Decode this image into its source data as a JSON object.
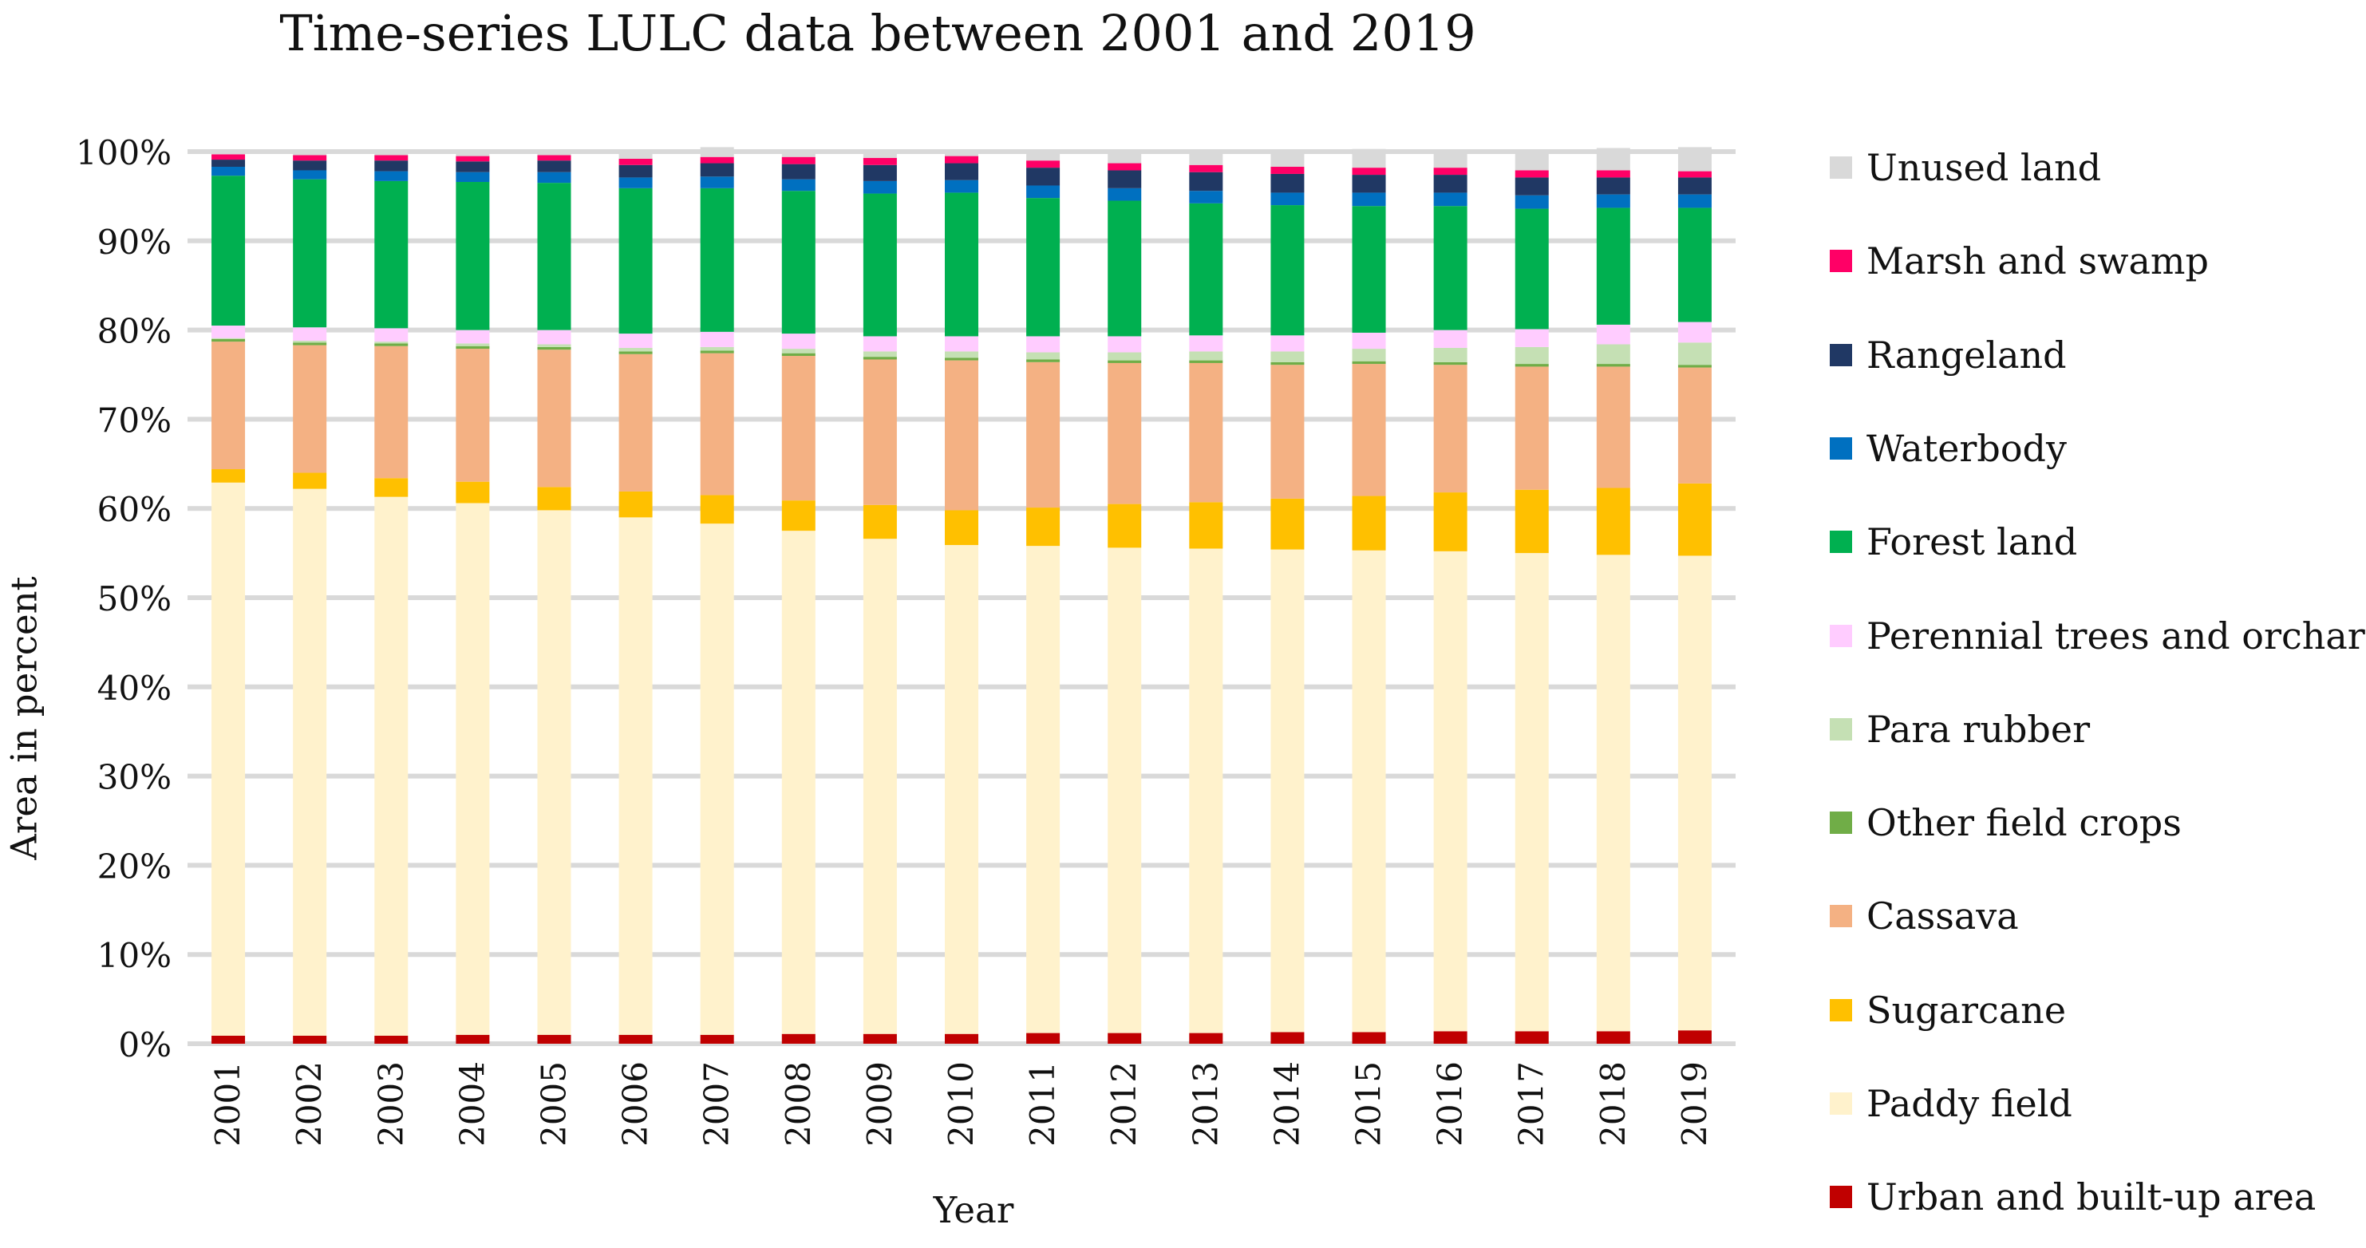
{
  "chart_data": {
    "type": "bar",
    "stacked": "percent",
    "title": "Time-series LULC data between 2001 and 2019",
    "xlabel": "Year",
    "ylabel": "Area in percent",
    "ylim": [
      0,
      100
    ],
    "yticks": [
      "0%",
      "10%",
      "20%",
      "30%",
      "40%",
      "50%",
      "60%",
      "70%",
      "80%",
      "90%",
      "100%"
    ],
    "grid": true,
    "legend_position": "right",
    "categories": [
      "2001",
      "2002",
      "2003",
      "2004",
      "2005",
      "2006",
      "2007",
      "2008",
      "2009",
      "2010",
      "2011",
      "2012",
      "2013",
      "2014",
      "2015",
      "2016",
      "2017",
      "2018",
      "2019"
    ],
    "series": [
      {
        "name": "Urban and built-up area",
        "color": "#C00000",
        "values": [
          0.9,
          0.9,
          0.9,
          1.0,
          1.0,
          1.0,
          1.0,
          1.1,
          1.1,
          1.1,
          1.2,
          1.2,
          1.2,
          1.3,
          1.3,
          1.4,
          1.4,
          1.4,
          1.5
        ]
      },
      {
        "name": "Paddy field",
        "color": "#FFF2CC",
        "values": [
          62.0,
          61.3,
          60.4,
          59.6,
          58.8,
          58.0,
          57.3,
          56.4,
          55.5,
          54.8,
          54.6,
          54.4,
          54.3,
          54.1,
          54.0,
          53.8,
          53.6,
          53.4,
          53.2
        ]
      },
      {
        "name": "Sugarcane",
        "color": "#FFC000",
        "values": [
          1.5,
          1.8,
          2.1,
          2.4,
          2.6,
          2.9,
          3.2,
          3.4,
          3.8,
          3.9,
          4.3,
          4.9,
          5.2,
          5.7,
          6.1,
          6.6,
          7.1,
          7.5,
          8.1
        ]
      },
      {
        "name": "Cassava",
        "color": "#F4B183",
        "values": [
          14.3,
          14.3,
          14.8,
          14.9,
          15.4,
          15.4,
          15.9,
          16.2,
          16.3,
          16.8,
          16.3,
          15.8,
          15.6,
          15.0,
          14.8,
          14.3,
          13.8,
          13.6,
          13.0
        ]
      },
      {
        "name": "Other field crops",
        "color": "#70AD47",
        "values": [
          0.3,
          0.3,
          0.3,
          0.3,
          0.3,
          0.3,
          0.3,
          0.3,
          0.3,
          0.3,
          0.3,
          0.3,
          0.3,
          0.3,
          0.3,
          0.3,
          0.3,
          0.3,
          0.3
        ]
      },
      {
        "name": "Para rubber",
        "color": "#C5E0B4",
        "values": [
          0.1,
          0.2,
          0.2,
          0.3,
          0.3,
          0.4,
          0.4,
          0.5,
          0.6,
          0.7,
          0.8,
          0.9,
          1.0,
          1.2,
          1.4,
          1.6,
          1.9,
          2.2,
          2.5
        ]
      },
      {
        "name": "Perennial trees and orchard",
        "color": "#FFCCFF",
        "values": [
          1.4,
          1.5,
          1.5,
          1.5,
          1.6,
          1.6,
          1.7,
          1.7,
          1.7,
          1.7,
          1.8,
          1.8,
          1.8,
          1.8,
          1.8,
          2.0,
          2.0,
          2.2,
          2.3
        ]
      },
      {
        "name": "Forest land",
        "color": "#00B050",
        "values": [
          16.8,
          16.6,
          16.5,
          16.6,
          16.5,
          16.3,
          16.1,
          16.0,
          16.0,
          16.1,
          15.5,
          15.2,
          14.8,
          14.6,
          14.2,
          13.9,
          13.5,
          13.1,
          12.8
        ]
      },
      {
        "name": "Waterbody",
        "color": "#0070C0",
        "values": [
          1.0,
          1.0,
          1.1,
          1.1,
          1.2,
          1.2,
          1.3,
          1.3,
          1.4,
          1.4,
          1.4,
          1.4,
          1.4,
          1.4,
          1.5,
          1.5,
          1.5,
          1.5,
          1.5
        ]
      },
      {
        "name": "Rangeland",
        "color": "#203864",
        "values": [
          0.8,
          1.1,
          1.2,
          1.2,
          1.3,
          1.4,
          1.5,
          1.7,
          1.8,
          1.9,
          2.0,
          2.0,
          2.1,
          2.1,
          2.0,
          2.0,
          2.0,
          1.9,
          1.9
        ]
      },
      {
        "name": "Marsh and swamp",
        "color": "#FF0066",
        "values": [
          0.6,
          0.6,
          0.6,
          0.6,
          0.6,
          0.7,
          0.7,
          0.8,
          0.8,
          0.8,
          0.8,
          0.8,
          0.8,
          0.8,
          0.8,
          0.8,
          0.8,
          0.8,
          0.7
        ]
      },
      {
        "name": "Unused land",
        "color": "#D9D9D9",
        "values": [
          0.3,
          0.4,
          0.4,
          0.5,
          0.4,
          0.8,
          1.1,
          0.6,
          0.7,
          0.5,
          1.0,
          1.3,
          1.5,
          1.7,
          2.1,
          1.8,
          2.1,
          2.5,
          2.7
        ]
      }
    ]
  }
}
